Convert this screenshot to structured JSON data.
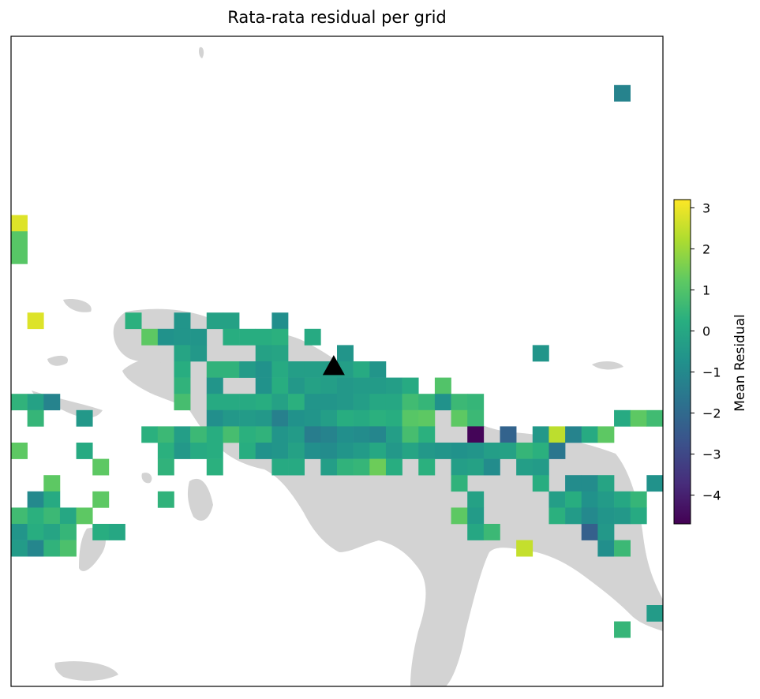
{
  "chart_data": {
    "type": "heatmap",
    "title": "Rata-rata residual per grid",
    "colorbar": {
      "label": "Mean Residual",
      "range": [
        -4.7,
        3.2
      ],
      "ticks": [
        3,
        2,
        1,
        0,
        -1,
        -2,
        -3,
        -4
      ],
      "tick_labels": [
        "3",
        "2",
        "1",
        "0",
        "−1",
        "−2",
        "−3",
        "−4"
      ],
      "colormap": "viridis"
    },
    "grid": {
      "cols": 40,
      "rows": 40
    },
    "marker": {
      "shape": "triangle",
      "col": 19.8,
      "row": 20.3,
      "color": "#000000"
    },
    "land_color": "#d3d3d3",
    "cells": [
      [
        37,
        3,
        -1.2
      ],
      [
        0,
        11,
        2.8
      ],
      [
        0,
        12,
        1.1
      ],
      [
        0,
        13,
        1.1
      ],
      [
        1,
        17,
        2.8
      ],
      [
        7,
        17,
        0.3
      ],
      [
        10,
        17,
        -0.6
      ],
      [
        12,
        17,
        -0.2
      ],
      [
        13,
        17,
        -0.2
      ],
      [
        16,
        17,
        -0.8
      ],
      [
        8,
        18,
        1.2
      ],
      [
        9,
        18,
        -0.7
      ],
      [
        10,
        18,
        -0.6
      ],
      [
        11,
        18,
        -0.6
      ],
      [
        13,
        18,
        0.2
      ],
      [
        14,
        18,
        0.2
      ],
      [
        15,
        18,
        0.2
      ],
      [
        16,
        18,
        0.3
      ],
      [
        18,
        18,
        0.1
      ],
      [
        10,
        19,
        -0.1
      ],
      [
        11,
        19,
        -0.5
      ],
      [
        15,
        19,
        -0.2
      ],
      [
        16,
        19,
        -0.1
      ],
      [
        20,
        19,
        -0.6
      ],
      [
        32,
        19,
        -0.6
      ],
      [
        10,
        20,
        0.2
      ],
      [
        12,
        20,
        0.4
      ],
      [
        13,
        20,
        0.4
      ],
      [
        14,
        20,
        -0.4
      ],
      [
        15,
        20,
        -0.7
      ],
      [
        16,
        20,
        0.1
      ],
      [
        17,
        20,
        -0.3
      ],
      [
        18,
        20,
        -0.3
      ],
      [
        19,
        20,
        -0.3
      ],
      [
        20,
        20,
        -0.3
      ],
      [
        21,
        20,
        0.1
      ],
      [
        22,
        20,
        -0.6
      ],
      [
        10,
        21,
        0.4
      ],
      [
        12,
        21,
        -0.6
      ],
      [
        15,
        21,
        -0.7
      ],
      [
        16,
        21,
        0.2
      ],
      [
        17,
        21,
        -0.5
      ],
      [
        18,
        21,
        -0.2
      ],
      [
        19,
        21,
        -0.3
      ],
      [
        20,
        21,
        -0.5
      ],
      [
        21,
        21,
        -0.4
      ],
      [
        22,
        21,
        -0.4
      ],
      [
        23,
        21,
        -0.3
      ],
      [
        24,
        21,
        0.1
      ],
      [
        26,
        21,
        1.0
      ],
      [
        0,
        22,
        0.4
      ],
      [
        1,
        22,
        -0.2
      ],
      [
        2,
        22,
        -1.2
      ],
      [
        10,
        22,
        0.8
      ],
      [
        12,
        22,
        0.1
      ],
      [
        13,
        22,
        0.1
      ],
      [
        14,
        22,
        0.1
      ],
      [
        15,
        22,
        0.2
      ],
      [
        16,
        22,
        -0.2
      ],
      [
        17,
        22,
        0.3
      ],
      [
        18,
        22,
        -0.6
      ],
      [
        19,
        22,
        -0.6
      ],
      [
        20,
        22,
        -0.5
      ],
      [
        21,
        22,
        -0.3
      ],
      [
        22,
        22,
        0.0
      ],
      [
        23,
        22,
        0.0
      ],
      [
        24,
        22,
        0.7
      ],
      [
        25,
        22,
        0.5
      ],
      [
        26,
        22,
        -0.7
      ],
      [
        27,
        22,
        0.6
      ],
      [
        28,
        22,
        0.5
      ],
      [
        1,
        23,
        0.5
      ],
      [
        4,
        23,
        -0.5
      ],
      [
        12,
        23,
        -0.8
      ],
      [
        13,
        23,
        -0.5
      ],
      [
        14,
        23,
        -0.4
      ],
      [
        15,
        23,
        -0.5
      ],
      [
        16,
        23,
        -1.3
      ],
      [
        17,
        23,
        -0.7
      ],
      [
        18,
        23,
        -0.6
      ],
      [
        19,
        23,
        -0.3
      ],
      [
        20,
        23,
        0.2
      ],
      [
        21,
        23,
        0.1
      ],
      [
        22,
        23,
        0.3
      ],
      [
        23,
        23,
        0.2
      ],
      [
        24,
        23,
        1.1
      ],
      [
        25,
        23,
        1.2
      ],
      [
        27,
        23,
        1.2
      ],
      [
        28,
        23,
        0.6
      ],
      [
        37,
        23,
        0.1
      ],
      [
        38,
        23,
        1.2
      ],
      [
        39,
        23,
        0.7
      ],
      [
        8,
        24,
        0.3
      ],
      [
        9,
        24,
        0.6
      ],
      [
        10,
        24,
        -0.3
      ],
      [
        11,
        24,
        0.6
      ],
      [
        12,
        24,
        0.2
      ],
      [
        13,
        24,
        0.8
      ],
      [
        14,
        24,
        0.3
      ],
      [
        15,
        24,
        0.4
      ],
      [
        16,
        24,
        -0.6
      ],
      [
        17,
        24,
        -0.4
      ],
      [
        18,
        24,
        -1.4
      ],
      [
        19,
        24,
        -1.2
      ],
      [
        20,
        24,
        -0.8
      ],
      [
        21,
        24,
        -0.9
      ],
      [
        22,
        24,
        -1.1
      ],
      [
        23,
        24,
        -0.3
      ],
      [
        24,
        24,
        0.8
      ],
      [
        25,
        24,
        0.3
      ],
      [
        28,
        24,
        -4.6
      ],
      [
        30,
        24,
        -2.2
      ],
      [
        32,
        24,
        -0.5
      ],
      [
        33,
        24,
        2.4
      ],
      [
        34,
        24,
        -1.2
      ],
      [
        35,
        24,
        0.1
      ],
      [
        36,
        24,
        1.2
      ],
      [
        0,
        25,
        1.2
      ],
      [
        4,
        25,
        0.1
      ],
      [
        9,
        25,
        0.3
      ],
      [
        10,
        25,
        -0.5
      ],
      [
        11,
        25,
        0.1
      ],
      [
        12,
        25,
        0.2
      ],
      [
        14,
        25,
        0.2
      ],
      [
        15,
        25,
        -0.7
      ],
      [
        16,
        25,
        -0.6
      ],
      [
        17,
        25,
        -0.2
      ],
      [
        18,
        25,
        -0.8
      ],
      [
        19,
        25,
        -0.9
      ],
      [
        20,
        25,
        -0.6
      ],
      [
        21,
        25,
        -0.4
      ],
      [
        22,
        25,
        0.0
      ],
      [
        23,
        25,
        -0.5
      ],
      [
        24,
        25,
        -0.1
      ],
      [
        25,
        25,
        -0.5
      ],
      [
        26,
        25,
        -0.6
      ],
      [
        27,
        25,
        -0.7
      ],
      [
        28,
        25,
        -0.6
      ],
      [
        29,
        25,
        -0.3
      ],
      [
        30,
        25,
        -0.2
      ],
      [
        31,
        25,
        0.5
      ],
      [
        32,
        25,
        0.3
      ],
      [
        33,
        25,
        -1.6
      ],
      [
        5,
        26,
        1.2
      ],
      [
        9,
        26,
        0.4
      ],
      [
        12,
        26,
        0.3
      ],
      [
        16,
        26,
        0.1
      ],
      [
        17,
        26,
        0.1
      ],
      [
        19,
        26,
        -0.3
      ],
      [
        20,
        26,
        0.4
      ],
      [
        21,
        26,
        0.5
      ],
      [
        22,
        26,
        1.4
      ],
      [
        23,
        26,
        0.2
      ],
      [
        25,
        26,
        0.3
      ],
      [
        27,
        26,
        -0.3
      ],
      [
        28,
        26,
        -0.2
      ],
      [
        29,
        26,
        -0.9
      ],
      [
        31,
        26,
        -0.3
      ],
      [
        32,
        26,
        -0.4
      ],
      [
        2,
        27,
        1.2
      ],
      [
        27,
        27,
        0.4
      ],
      [
        32,
        27,
        0.2
      ],
      [
        34,
        27,
        -0.9
      ],
      [
        35,
        27,
        -0.9
      ],
      [
        36,
        27,
        -0.1
      ],
      [
        39,
        27,
        -0.7
      ],
      [
        1,
        28,
        -1.0
      ],
      [
        2,
        28,
        0.1
      ],
      [
        5,
        28,
        1.2
      ],
      [
        9,
        28,
        0.4
      ],
      [
        28,
        28,
        -0.2
      ],
      [
        33,
        28,
        -0.3
      ],
      [
        34,
        28,
        0.2
      ],
      [
        35,
        28,
        -0.7
      ],
      [
        36,
        28,
        -0.4
      ],
      [
        37,
        28,
        0.0
      ],
      [
        38,
        28,
        0.5
      ],
      [
        0,
        29,
        0.7
      ],
      [
        1,
        29,
        0.3
      ],
      [
        2,
        29,
        0.6
      ],
      [
        3,
        29,
        0.0
      ],
      [
        4,
        29,
        1.2
      ],
      [
        27,
        29,
        1.2
      ],
      [
        28,
        29,
        -0.4
      ],
      [
        33,
        29,
        0.3
      ],
      [
        34,
        29,
        -0.4
      ],
      [
        35,
        29,
        -1.0
      ],
      [
        36,
        29,
        -0.6
      ],
      [
        37,
        29,
        -0.5
      ],
      [
        38,
        29,
        0.1
      ],
      [
        0,
        30,
        -0.6
      ],
      [
        1,
        30,
        0.2
      ],
      [
        2,
        30,
        -0.1
      ],
      [
        3,
        30,
        0.5
      ],
      [
        5,
        30,
        0.2
      ],
      [
        6,
        30,
        0.0
      ],
      [
        28,
        30,
        0.0
      ],
      [
        29,
        30,
        0.6
      ],
      [
        35,
        30,
        -2.3
      ],
      [
        36,
        30,
        -0.5
      ],
      [
        0,
        31,
        -0.4
      ],
      [
        1,
        31,
        -1.1
      ],
      [
        2,
        31,
        0.4
      ],
      [
        3,
        31,
        0.9
      ],
      [
        31,
        31,
        2.5
      ],
      [
        36,
        31,
        -0.8
      ],
      [
        37,
        31,
        0.6
      ],
      [
        39,
        35,
        -0.4
      ],
      [
        37,
        36,
        0.5
      ]
    ]
  }
}
